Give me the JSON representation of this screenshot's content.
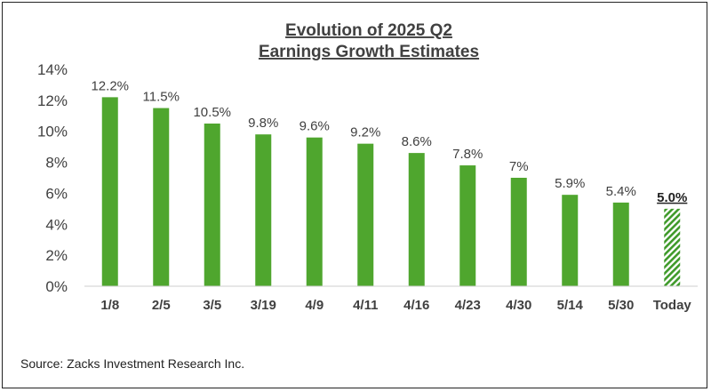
{
  "chart_data": {
    "type": "bar",
    "title_lines": [
      "Evolution of 2025 Q2",
      "Earnings Growth Estimates"
    ],
    "categories": [
      "1/8",
      "2/5",
      "3/5",
      "3/19",
      "4/9",
      "4/11",
      "4/16",
      "4/23",
      "4/30",
      "5/14",
      "5/30",
      "Today"
    ],
    "values": [
      12.2,
      11.5,
      10.5,
      9.8,
      9.6,
      9.2,
      8.6,
      7.8,
      7.0,
      5.9,
      5.4,
      5.0
    ],
    "data_labels": [
      "12.2%",
      "11.5%",
      "10.5%",
      "9.8%",
      "9.6%",
      "9.2%",
      "8.6%",
      "7.8%",
      "7%",
      "5.9%",
      "5.4%",
      "5.0%"
    ],
    "ylim": [
      0,
      14
    ],
    "yticks": [
      "0%",
      "2%",
      "4%",
      "6%",
      "8%",
      "10%",
      "12%",
      "14%"
    ],
    "highlight_last": true,
    "bar_color": "#4fa62e",
    "hatch_color": "#3f9a2a",
    "grid": false,
    "source": "Source: Zacks Investment Research Inc."
  }
}
